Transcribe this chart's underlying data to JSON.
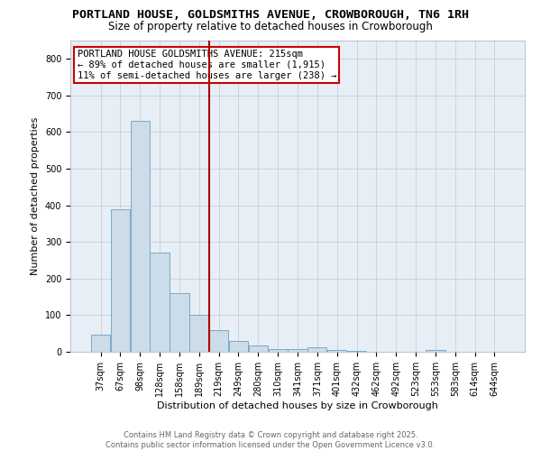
{
  "title": "PORTLAND HOUSE, GOLDSMITHS AVENUE, CROWBOROUGH, TN6 1RH",
  "subtitle": "Size of property relative to detached houses in Crowborough",
  "xlabel": "Distribution of detached houses by size in Crowborough",
  "ylabel": "Number of detached properties",
  "categories": [
    "37sqm",
    "67sqm",
    "98sqm",
    "128sqm",
    "158sqm",
    "189sqm",
    "219sqm",
    "249sqm",
    "280sqm",
    "310sqm",
    "341sqm",
    "371sqm",
    "401sqm",
    "432sqm",
    "462sqm",
    "492sqm",
    "523sqm",
    "553sqm",
    "583sqm",
    "614sqm",
    "644sqm"
  ],
  "values": [
    48,
    390,
    630,
    270,
    160,
    100,
    58,
    30,
    18,
    8,
    8,
    12,
    5,
    3,
    1,
    1,
    0,
    5,
    0,
    0,
    0
  ],
  "bar_color": "#ccdce8",
  "bar_edge_color": "#7aaac8",
  "vline_x": 5.525,
  "vline_color": "#aa0000",
  "annotation_text": "PORTLAND HOUSE GOLDSMITHS AVENUE: 215sqm\n← 89% of detached houses are smaller (1,915)\n11% of semi-detached houses are larger (238) →",
  "annotation_box_color": "#ffffff",
  "annotation_box_edge_color": "#cc0000",
  "ylim": [
    0,
    850
  ],
  "yticks": [
    0,
    100,
    200,
    300,
    400,
    500,
    600,
    700,
    800
  ],
  "bg_color": "#e8eef5",
  "footer_text": "Contains HM Land Registry data © Crown copyright and database right 2025.\nContains public sector information licensed under the Open Government Licence v3.0.",
  "title_fontsize": 9.5,
  "subtitle_fontsize": 8.5,
  "tick_fontsize": 7,
  "axis_label_fontsize": 8,
  "annotation_fontsize": 7.5,
  "footer_fontsize": 6
}
